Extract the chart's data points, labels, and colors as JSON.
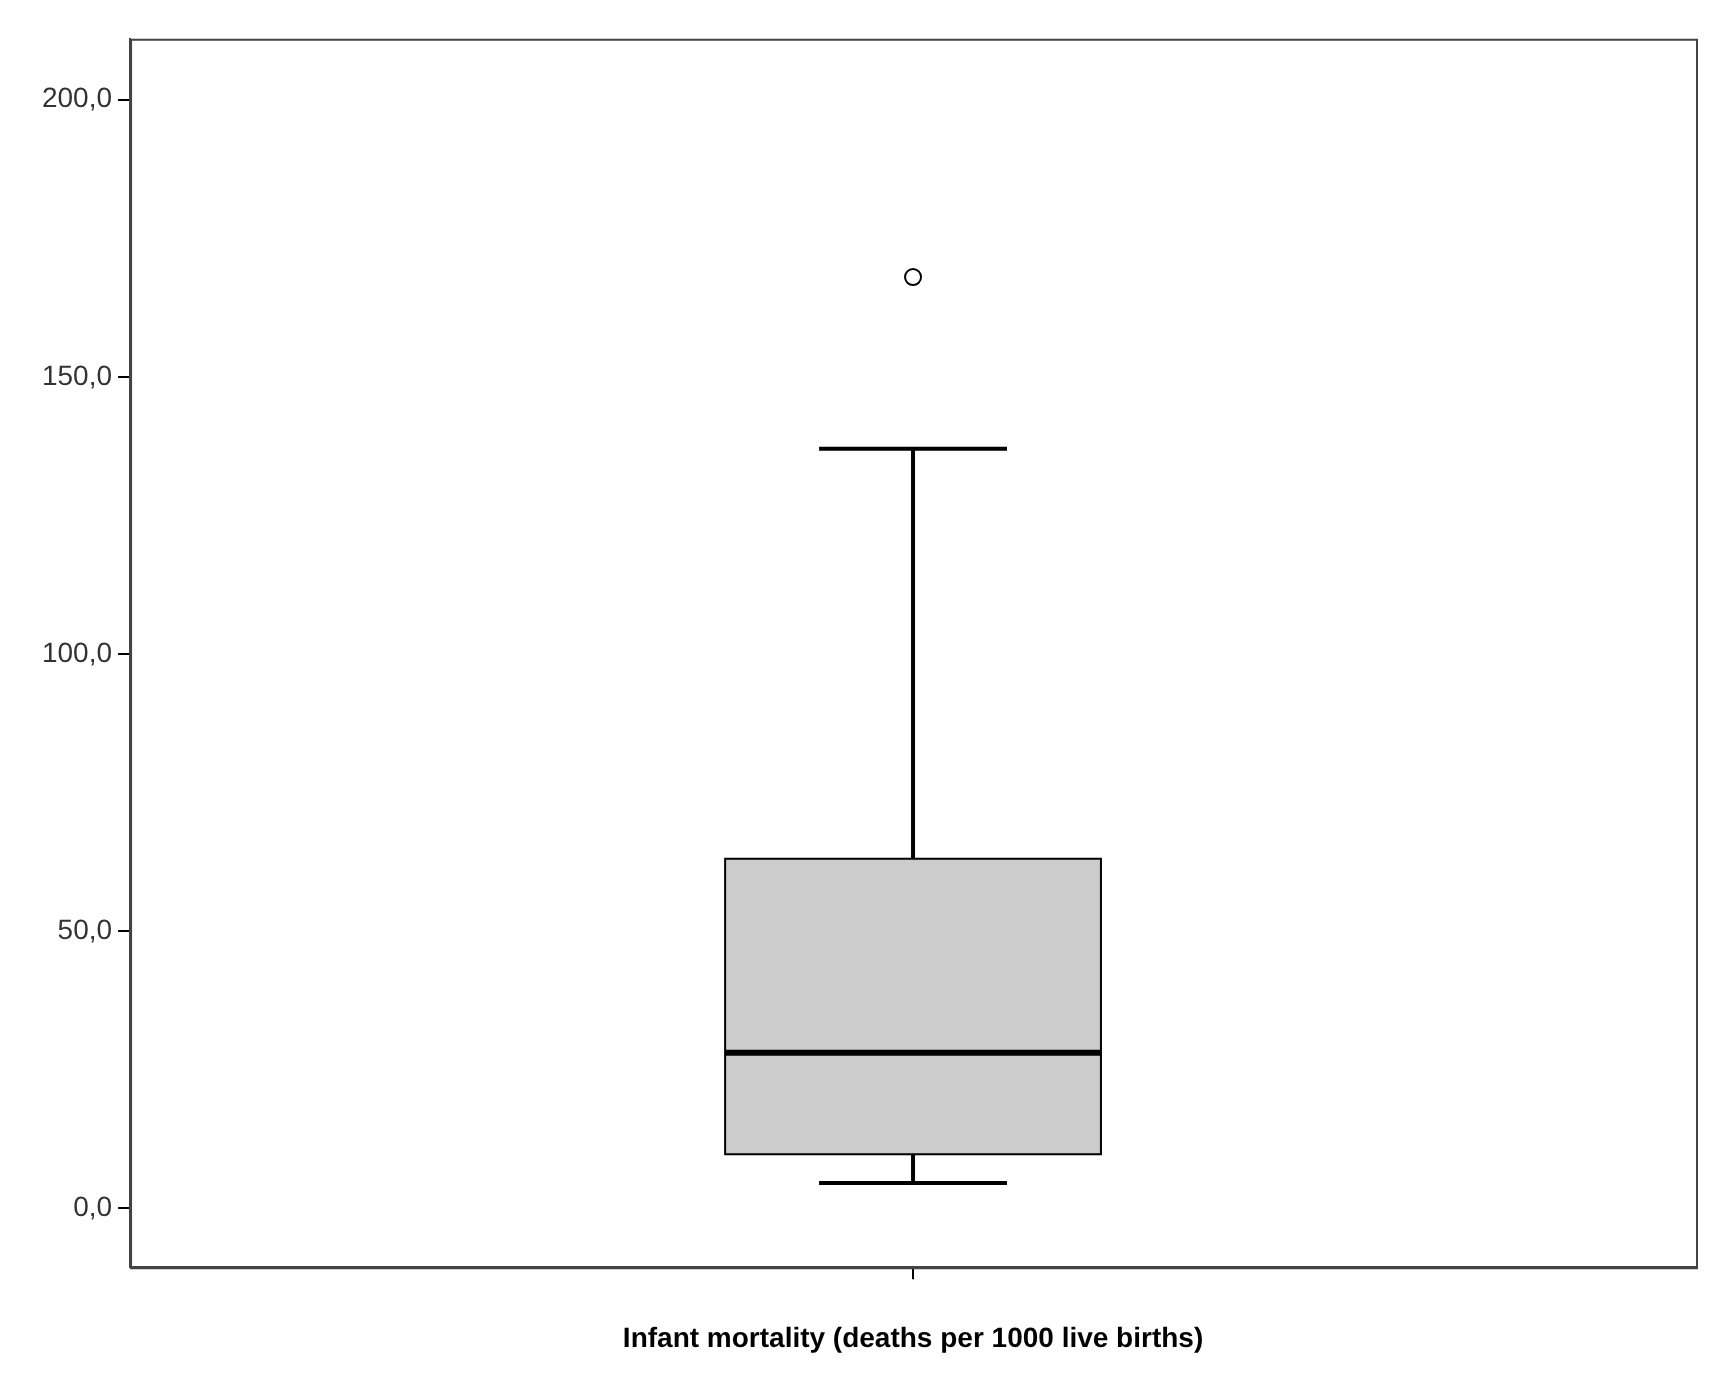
{
  "chart_data": {
    "type": "box",
    "xlabel": "Infant mortality (deaths per 1000 live births)",
    "categories": [
      null
    ],
    "boxes": [
      {
        "low": 4.5,
        "q1": 9.7,
        "median": 28,
        "q3": 63,
        "high": 137,
        "outliers": [
          168
        ]
      }
    ],
    "color": "#cccccc",
    "ylim": [
      -10.7,
      211
    ],
    "yticks": [
      {
        "value": 0,
        "label": "0,0"
      },
      {
        "value": 50,
        "label": "50,0"
      },
      {
        "value": 100,
        "label": "100,0"
      },
      {
        "value": 150,
        "label": "150,0"
      },
      {
        "value": 200,
        "label": "200,0"
      }
    ],
    "grid": false,
    "legend": false
  }
}
